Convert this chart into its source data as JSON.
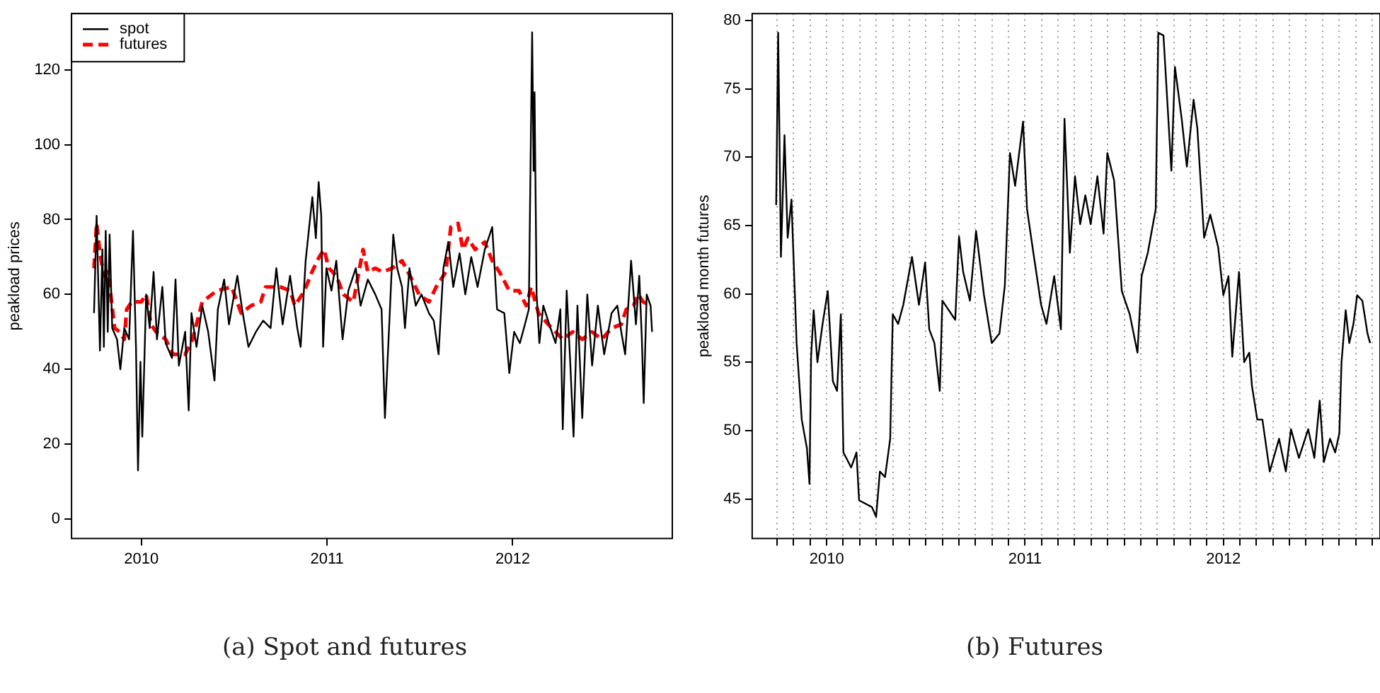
{
  "chart_data": [
    {
      "type": "line",
      "ylabel": "peakload prices",
      "annotations": [
        "(a) Spot and futures"
      ],
      "xlim": [
        2009.624,
        2012.86
      ],
      "xticks": [
        2010,
        2011,
        2012
      ],
      "ylim": [
        -5.2,
        135
      ],
      "yticks": [
        0,
        20,
        40,
        60,
        80,
        100,
        120
      ],
      "grid": false,
      "legend": "top left",
      "marker": "none",
      "series": [
        {
          "name": "spot",
          "color": "#000000",
          "line_style": "solid",
          "x": [
            2009.745,
            2009.759,
            2009.777,
            2009.79,
            2009.798,
            2009.808,
            2009.819,
            2009.829,
            2009.843,
            2009.869,
            2009.887,
            2009.908,
            2009.934,
            2009.955,
            2009.971,
            2009.982,
            2009.995,
            2010.005,
            2010.026,
            2010.045,
            2010.066,
            2010.084,
            2010.113,
            2010.131,
            2010.165,
            2010.184,
            2010.202,
            2010.236,
            2010.255,
            2010.27,
            2010.297,
            2010.328,
            2010.36,
            2010.394,
            2010.412,
            2010.446,
            2010.472,
            2010.517,
            2010.543,
            2010.577,
            2010.617,
            2010.656,
            2010.696,
            2010.727,
            2010.761,
            2010.801,
            2010.84,
            2010.858,
            2010.885,
            2010.921,
            2010.94,
            2010.955,
            2010.969,
            2010.979,
            2010.997,
            2011.024,
            2011.05,
            2011.084,
            2011.115,
            2011.155,
            2011.181,
            2011.22,
            2011.26,
            2011.294,
            2011.312,
            2011.339,
            2011.357,
            2011.378,
            2011.404,
            2011.42,
            2011.444,
            2011.478,
            2011.509,
            2011.549,
            2011.575,
            2011.601,
            2011.627,
            2011.654,
            2011.68,
            2011.714,
            2011.745,
            2011.777,
            2011.811,
            2011.85,
            2011.89,
            2011.916,
            2011.955,
            2011.982,
            2012.008,
            2012.039,
            2012.066,
            2012.087,
            2012.105,
            2012.113,
            2012.118,
            2012.129,
            2012.144,
            2012.165,
            2012.197,
            2012.231,
            2012.257,
            2012.27,
            2012.291,
            2012.31,
            2012.328,
            2012.349,
            2012.375,
            2012.402,
            2012.428,
            2012.459,
            2012.493,
            2012.533,
            2012.564,
            2012.585,
            2012.606,
            2012.638,
            2012.664,
            2012.682,
            2012.696,
            2012.706,
            2012.722,
            2012.743,
            2012.751
          ],
          "values": [
            55,
            81,
            45,
            72,
            46,
            77,
            50,
            76,
            51,
            48,
            40,
            51,
            48,
            77,
            46,
            13,
            42,
            22,
            60,
            51,
            66,
            48,
            62,
            47,
            43,
            64,
            41,
            50,
            29,
            55,
            46,
            57,
            50,
            37,
            56,
            64,
            52,
            65,
            56,
            46,
            50,
            53,
            51,
            67,
            52,
            65,
            51,
            46,
            69,
            86,
            75,
            90,
            81,
            46,
            67,
            61,
            69,
            48,
            61,
            67,
            57,
            64,
            60,
            56,
            27,
            56,
            76,
            67,
            62,
            51,
            67,
            57,
            60,
            55,
            53,
            44,
            67,
            74,
            62,
            71,
            60,
            70,
            62,
            72,
            78,
            56,
            55,
            39,
            50,
            47,
            52,
            56,
            130,
            93,
            114,
            60,
            47,
            57,
            52,
            47,
            56,
            24,
            61,
            42,
            22,
            57,
            27,
            60,
            41,
            57,
            44,
            55,
            57,
            50,
            44,
            69,
            52,
            65,
            48,
            31,
            60,
            57,
            50
          ]
        },
        {
          "name": "futures",
          "color": "#ff0000",
          "line_style": "dashed",
          "x": [
            2009.745,
            2009.759,
            2009.777,
            2009.798,
            2009.816,
            2009.835,
            2009.856,
            2009.882,
            2009.908,
            2009.921,
            2009.948,
            2010.0,
            2010.026,
            2010.052,
            2010.079,
            2010.131,
            2010.171,
            2010.236,
            2010.276,
            2010.328,
            2010.407,
            2010.486,
            2010.538,
            2010.591,
            2010.643,
            2010.669,
            2010.748,
            2010.801,
            2010.827,
            2010.879,
            2010.919,
            2010.958,
            2010.984,
            2011.01,
            2011.05,
            2011.089,
            2011.142,
            2011.194,
            2011.22,
            2011.26,
            2011.299,
            2011.352,
            2011.404,
            2011.457,
            2011.496,
            2011.549,
            2011.588,
            2011.64,
            2011.667,
            2011.706,
            2011.732,
            2011.759,
            2011.798,
            2011.85,
            2011.89,
            2011.929,
            2011.982,
            2012.034,
            2012.073,
            2012.1,
            2012.139,
            2012.192,
            2012.231,
            2012.27,
            2012.323,
            2012.375,
            2012.428,
            2012.48,
            2012.533,
            2012.585,
            2012.612,
            2012.651,
            2012.677,
            2012.703,
            2012.743
          ],
          "values": [
            67,
            79,
            71,
            65,
            66,
            60,
            51,
            50,
            48,
            56,
            58,
            58,
            60,
            52,
            50,
            48,
            44,
            44,
            48,
            58,
            61,
            62,
            55,
            57,
            58,
            62,
            62,
            61,
            57,
            61,
            66,
            70,
            72,
            67,
            65,
            60,
            58,
            72,
            66,
            67,
            66,
            67,
            69,
            64,
            60,
            58,
            62,
            66,
            78,
            79,
            72,
            75,
            72,
            74,
            69,
            66,
            61,
            61,
            57,
            62,
            55,
            52,
            50,
            48,
            50,
            48,
            50,
            48,
            51,
            52,
            56,
            57,
            60,
            58,
            57
          ]
        }
      ]
    },
    {
      "type": "line",
      "ylabel": "peakload month futures",
      "annotations": [
        "(b) Futures"
      ],
      "xlim": [
        2009.624,
        2012.79
      ],
      "xticks": [
        {
          "value": 2009.75,
          "label": null
        },
        {
          "value": 2009.833,
          "label": null
        },
        {
          "value": 2009.917,
          "label": null
        },
        2010,
        {
          "value": 2010.083,
          "label": null
        },
        {
          "value": 2010.167,
          "label": null
        },
        {
          "value": 2010.25,
          "label": null
        },
        {
          "value": 2010.333,
          "label": null
        },
        {
          "value": 2010.417,
          "label": null
        },
        {
          "value": 2010.5,
          "label": null
        },
        {
          "value": 2010.583,
          "label": null
        },
        {
          "value": 2010.667,
          "label": null
        },
        {
          "value": 2010.75,
          "label": null
        },
        {
          "value": 2010.833,
          "label": null
        },
        {
          "value": 2010.917,
          "label": null
        },
        2011,
        {
          "value": 2011.083,
          "label": null
        },
        {
          "value": 2011.167,
          "label": null
        },
        {
          "value": 2011.25,
          "label": null
        },
        {
          "value": 2011.333,
          "label": null
        },
        {
          "value": 2011.417,
          "label": null
        },
        {
          "value": 2011.5,
          "label": null
        },
        {
          "value": 2011.583,
          "label": null
        },
        {
          "value": 2011.667,
          "label": null
        },
        {
          "value": 2011.75,
          "label": null
        },
        {
          "value": 2011.833,
          "label": null
        },
        {
          "value": 2011.917,
          "label": null
        },
        2012,
        {
          "value": 2012.083,
          "label": null
        },
        {
          "value": 2012.167,
          "label": null
        },
        {
          "value": 2012.25,
          "label": null
        },
        {
          "value": 2012.333,
          "label": null
        },
        {
          "value": 2012.417,
          "label": null
        },
        {
          "value": 2012.5,
          "label": null
        },
        {
          "value": 2012.583,
          "label": null
        },
        {
          "value": 2012.667,
          "label": null
        },
        {
          "value": 2012.75,
          "label": null
        }
      ],
      "ylim": [
        42.1,
        80.5
      ],
      "yticks": [
        45,
        50,
        55,
        60,
        65,
        70,
        75,
        80
      ],
      "grid": "x",
      "marker": "none",
      "series": [
        {
          "color": "#000000",
          "line_style": "solid",
          "x": [
            2009.745,
            2009.755,
            2009.769,
            2009.787,
            2009.803,
            2009.822,
            2009.848,
            2009.874,
            2009.9,
            2009.913,
            2009.921,
            2009.934,
            2009.953,
            2009.979,
            2010.005,
            2010.031,
            2010.052,
            2010.071,
            2010.084,
            2010.123,
            2010.15,
            2010.163,
            2010.228,
            2010.249,
            2010.268,
            2010.294,
            2010.32,
            2010.333,
            2010.36,
            2010.386,
            2010.43,
            2010.465,
            2010.496,
            2010.517,
            2010.543,
            2010.57,
            2010.583,
            2010.648,
            2010.667,
            2010.688,
            2010.722,
            2010.753,
            2010.793,
            2010.832,
            2010.871,
            2010.898,
            2010.924,
            2010.95,
            2010.99,
            2011.01,
            2011.042,
            2011.081,
            2011.108,
            2011.147,
            2011.181,
            2011.199,
            2011.226,
            2011.252,
            2011.278,
            2011.304,
            2011.331,
            2011.365,
            2011.396,
            2011.415,
            2011.449,
            2011.488,
            2011.528,
            2011.567,
            2011.588,
            2011.619,
            2011.659,
            2011.672,
            2011.698,
            2011.738,
            2011.756,
            2011.79,
            2011.816,
            2011.85,
            2011.869,
            2011.903,
            2011.934,
            2011.974,
            2012.0,
            2012.026,
            2012.045,
            2012.079,
            2012.105,
            2012.131,
            2012.144,
            2012.171,
            2012.197,
            2012.234,
            2012.281,
            2012.315,
            2012.341,
            2012.381,
            2012.428,
            2012.459,
            2012.486,
            2012.507,
            2012.538,
            2012.564,
            2012.585,
            2012.596,
            2012.617,
            2012.635,
            2012.656,
            2012.675,
            2012.701,
            2012.727,
            2012.74
          ],
          "values": [
            66.5,
            79.1,
            62.7,
            71.6,
            64.1,
            66.9,
            56.4,
            50.8,
            48.7,
            46.1,
            55.4,
            58.8,
            55,
            57.8,
            60.2,
            53.6,
            52.9,
            58.5,
            48.4,
            47.3,
            48.4,
            44.9,
            44.4,
            43.7,
            47,
            46.6,
            49.4,
            58.5,
            57.8,
            59.2,
            62.7,
            59.2,
            62.3,
            57.4,
            56.4,
            52.9,
            59.5,
            58.1,
            64.2,
            61.6,
            59.5,
            64.6,
            59.9,
            56.4,
            57.1,
            60.6,
            70.3,
            67.9,
            72.6,
            66.2,
            63,
            59.2,
            57.8,
            61.3,
            57.4,
            72.8,
            63,
            68.6,
            65.1,
            67.2,
            65.1,
            68.6,
            64.4,
            70.3,
            68.3,
            60.2,
            58.5,
            55.7,
            61.3,
            63,
            66.2,
            79.1,
            78.9,
            69,
            76.6,
            72.8,
            69.3,
            74.2,
            72.1,
            64.1,
            65.8,
            63.4,
            59.9,
            61.3,
            55.4,
            61.6,
            55,
            55.7,
            53.3,
            50.8,
            50.8,
            47,
            49.4,
            47,
            50.1,
            48,
            50.1,
            48,
            52.2,
            47.7,
            49.4,
            48.4,
            49.8,
            55,
            58.8,
            56.4,
            57.8,
            59.9,
            59.5,
            57.1,
            56.4
          ]
        }
      ]
    }
  ]
}
